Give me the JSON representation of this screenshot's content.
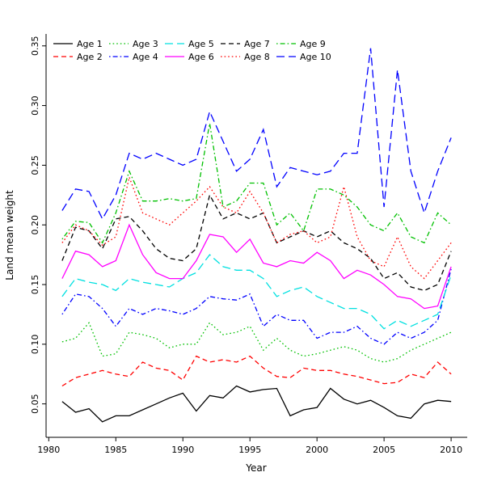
{
  "figure": {
    "background": "#ffffff"
  },
  "chart_data": {
    "type": "line",
    "title": "",
    "xlabel": "Year",
    "ylabel": "Land mean weight",
    "x": [
      1981,
      1982,
      1983,
      1984,
      1985,
      1986,
      1987,
      1988,
      1989,
      1990,
      1991,
      1992,
      1993,
      1994,
      1995,
      1996,
      1997,
      1998,
      1999,
      2000,
      2001,
      2002,
      2003,
      2004,
      2005,
      2006,
      2007,
      2008,
      2009,
      2010
    ],
    "xlim": [
      1979.8,
      2011.2
    ],
    "ylim": [
      0.022,
      0.36
    ],
    "xticks": [
      1980,
      1985,
      1990,
      1995,
      2000,
      2005,
      2010
    ],
    "xtick_labels": [
      "1980",
      "1985",
      "1990",
      "1995",
      "2000",
      "2005",
      "2010"
    ],
    "yticks": [
      0.05,
      0.1,
      0.15,
      0.2,
      0.25,
      0.3,
      0.35
    ],
    "ytick_labels": [
      "0.05",
      "0.10",
      "0.15",
      "0.20",
      "0.25",
      "0.30",
      "0.35"
    ],
    "grid": false,
    "legend_position": "top-inside",
    "legend_columns": 5,
    "series": [
      {
        "name": "Age 1",
        "color": "#000000",
        "linestyle": "solid",
        "dash": "",
        "values": [
          0.052,
          0.043,
          0.046,
          0.035,
          0.04,
          0.04,
          0.045,
          0.05,
          0.055,
          0.059,
          0.044,
          0.057,
          0.055,
          0.065,
          0.06,
          0.062,
          0.063,
          0.04,
          0.045,
          0.047,
          0.063,
          0.054,
          0.05,
          0.053,
          0.047,
          0.04,
          0.038,
          0.05,
          0.053,
          0.052
        ]
      },
      {
        "name": "Age 2",
        "color": "#ff0000",
        "linestyle": "dashed",
        "dash": "6,4",
        "values": [
          0.065,
          0.072,
          0.075,
          0.078,
          0.075,
          0.073,
          0.085,
          0.08,
          0.078,
          0.07,
          0.09,
          0.085,
          0.087,
          0.085,
          0.09,
          0.08,
          0.073,
          0.072,
          0.08,
          0.078,
          0.078,
          0.075,
          0.073,
          0.07,
          0.067,
          0.068,
          0.075,
          0.072,
          0.085,
          0.075
        ]
      },
      {
        "name": "Age 3",
        "color": "#00c000",
        "linestyle": "dotted",
        "dash": "1.6,3",
        "values": [
          0.102,
          0.105,
          0.118,
          0.09,
          0.092,
          0.11,
          0.108,
          0.105,
          0.097,
          0.1,
          0.1,
          0.118,
          0.108,
          0.11,
          0.115,
          0.095,
          0.105,
          0.095,
          0.09,
          0.092,
          0.095,
          0.098,
          0.095,
          0.088,
          0.085,
          0.088,
          0.095,
          0.1,
          0.105,
          0.11
        ]
      },
      {
        "name": "Age 4",
        "color": "#0000ff",
        "linestyle": "dotdash",
        "dash": "1.6,3,6,3",
        "values": [
          0.125,
          0.142,
          0.14,
          0.13,
          0.115,
          0.13,
          0.125,
          0.13,
          0.128,
          0.125,
          0.13,
          0.14,
          0.138,
          0.137,
          0.142,
          0.115,
          0.125,
          0.12,
          0.12,
          0.105,
          0.11,
          0.11,
          0.115,
          0.105,
          0.1,
          0.11,
          0.105,
          0.11,
          0.12,
          0.163
        ]
      },
      {
        "name": "Age 5",
        "color": "#00e0e0",
        "linestyle": "longdash",
        "dash": "10,5",
        "values": [
          0.14,
          0.155,
          0.152,
          0.15,
          0.145,
          0.155,
          0.152,
          0.15,
          0.148,
          0.155,
          0.16,
          0.175,
          0.165,
          0.162,
          0.162,
          0.155,
          0.14,
          0.145,
          0.148,
          0.14,
          0.135,
          0.13,
          0.13,
          0.125,
          0.113,
          0.12,
          0.115,
          0.12,
          0.125,
          0.158
        ]
      },
      {
        "name": "Age 6",
        "color": "#ff00ff",
        "linestyle": "solid",
        "dash": "",
        "values": [
          0.155,
          0.178,
          0.175,
          0.165,
          0.17,
          0.2,
          0.175,
          0.16,
          0.155,
          0.155,
          0.17,
          0.192,
          0.19,
          0.177,
          0.188,
          0.168,
          0.165,
          0.17,
          0.168,
          0.177,
          0.17,
          0.155,
          0.162,
          0.158,
          0.15,
          0.14,
          0.138,
          0.13,
          0.132,
          0.165
        ]
      },
      {
        "name": "Age 7",
        "color": "#000000",
        "linestyle": "dashed",
        "dash": "6,4",
        "values": [
          0.17,
          0.198,
          0.195,
          0.18,
          0.205,
          0.207,
          0.195,
          0.18,
          0.172,
          0.17,
          0.18,
          0.225,
          0.205,
          0.21,
          0.205,
          0.21,
          0.185,
          0.19,
          0.195,
          0.19,
          0.195,
          0.185,
          0.18,
          0.172,
          0.155,
          0.16,
          0.148,
          0.145,
          0.15,
          0.178
        ]
      },
      {
        "name": "Age 8",
        "color": "#ff0000",
        "linestyle": "dotted",
        "dash": "1.6,3",
        "values": [
          0.185,
          0.2,
          0.195,
          0.183,
          0.19,
          0.24,
          0.21,
          0.205,
          0.2,
          0.21,
          0.22,
          0.232,
          0.215,
          0.21,
          0.228,
          0.21,
          0.185,
          0.192,
          0.195,
          0.185,
          0.19,
          0.232,
          0.19,
          0.17,
          0.165,
          0.19,
          0.165,
          0.155,
          0.17,
          0.185
        ]
      },
      {
        "name": "Age 9",
        "color": "#00c000",
        "linestyle": "dotdash",
        "dash": "1.6,3,6,3",
        "values": [
          0.188,
          0.203,
          0.202,
          0.185,
          0.21,
          0.245,
          0.22,
          0.22,
          0.222,
          0.22,
          0.222,
          0.285,
          0.215,
          0.22,
          0.235,
          0.235,
          0.2,
          0.21,
          0.195,
          0.23,
          0.23,
          0.225,
          0.215,
          0.2,
          0.195,
          0.21,
          0.19,
          0.185,
          0.21,
          0.2
        ]
      },
      {
        "name": "Age 10",
        "color": "#0000ff",
        "linestyle": "longdash",
        "dash": "10,5",
        "values": [
          0.212,
          0.23,
          0.228,
          0.205,
          0.225,
          0.26,
          0.255,
          0.26,
          0.255,
          0.25,
          0.255,
          0.295,
          0.27,
          0.245,
          0.255,
          0.28,
          0.232,
          0.248,
          0.245,
          0.242,
          0.245,
          0.26,
          0.26,
          0.348,
          0.215,
          0.33,
          0.245,
          0.21,
          0.245,
          0.273
        ]
      }
    ]
  }
}
